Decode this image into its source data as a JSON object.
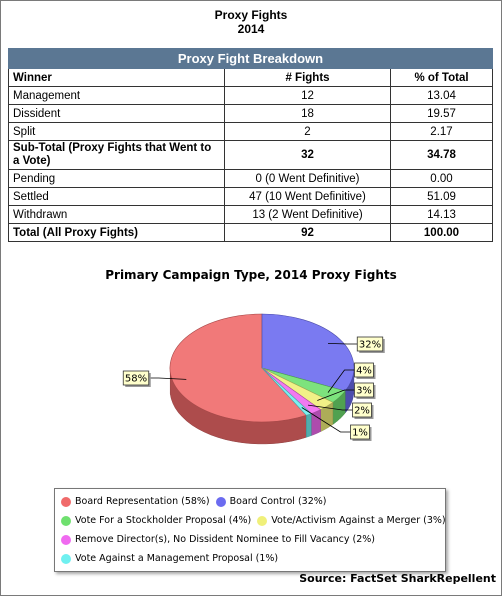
{
  "doc": {
    "title": "Proxy Fights",
    "year": "2014"
  },
  "table": {
    "banner": "Proxy Fight Breakdown",
    "headers": [
      "Winner",
      "# Fights",
      "% of Total"
    ],
    "rows": [
      {
        "label": "Management",
        "fights": "12",
        "pct": "13.04",
        "bold": false
      },
      {
        "label": "Dissident",
        "fights": "18",
        "pct": "19.57",
        "bold": false
      },
      {
        "label": "Split",
        "fights": "2",
        "pct": "2.17",
        "bold": false
      },
      {
        "label": "Sub-Total (Proxy Fights that Went to a Vote)",
        "fights": "32",
        "pct": "34.78",
        "bold": true
      },
      {
        "label": "Pending",
        "fights": "0 (0 Went Definitive)",
        "pct": "0.00",
        "bold": false
      },
      {
        "label": "Settled",
        "fights": "47 (10 Went Definitive)",
        "pct": "51.09",
        "bold": false
      },
      {
        "label": "Withdrawn",
        "fights": "13 (2 Went Definitive)",
        "pct": "14.13",
        "bold": false
      },
      {
        "label": "Total (All Proxy Fights)",
        "fights": "92",
        "pct": "100.00",
        "bold": true
      }
    ]
  },
  "chart_data": {
    "type": "pie",
    "title": "Primary Campaign Type, 2014 Proxy Fights",
    "slices": [
      {
        "name": "Board Representation",
        "value": 58,
        "label": "58%",
        "legend": "Board Representation (58%)",
        "color": "#f06a6a"
      },
      {
        "name": "Board Control",
        "value": 32,
        "label": "32%",
        "legend": "Board Control (32%)",
        "color": "#6b6bf0"
      },
      {
        "name": "Vote For a Stockholder Proposal",
        "value": 4,
        "label": "4%",
        "legend": "Vote For a Stockholder Proposal (4%)",
        "color": "#6fe06f"
      },
      {
        "name": "Vote/Activism Against a Merger",
        "value": 3,
        "label": "3%",
        "legend": "Vote/Activism Against a Merger (3%)",
        "color": "#f0f07a"
      },
      {
        "name": "Remove Director(s), No Dissident Nominee to Fill Vacancy",
        "value": 2,
        "label": "2%",
        "legend": "Remove Director(s), No Dissident Nominee to Fill Vacancy (2%)",
        "color": "#f06af0"
      },
      {
        "name": "Vote Against a Management Proposal",
        "value": 1,
        "label": "1%",
        "legend": "Vote Against a Management Proposal (1%)",
        "color": "#6ff0f0"
      }
    ],
    "legend_position": "bottom",
    "style": "3d"
  },
  "source": "Source: FactSet SharkRepellent"
}
